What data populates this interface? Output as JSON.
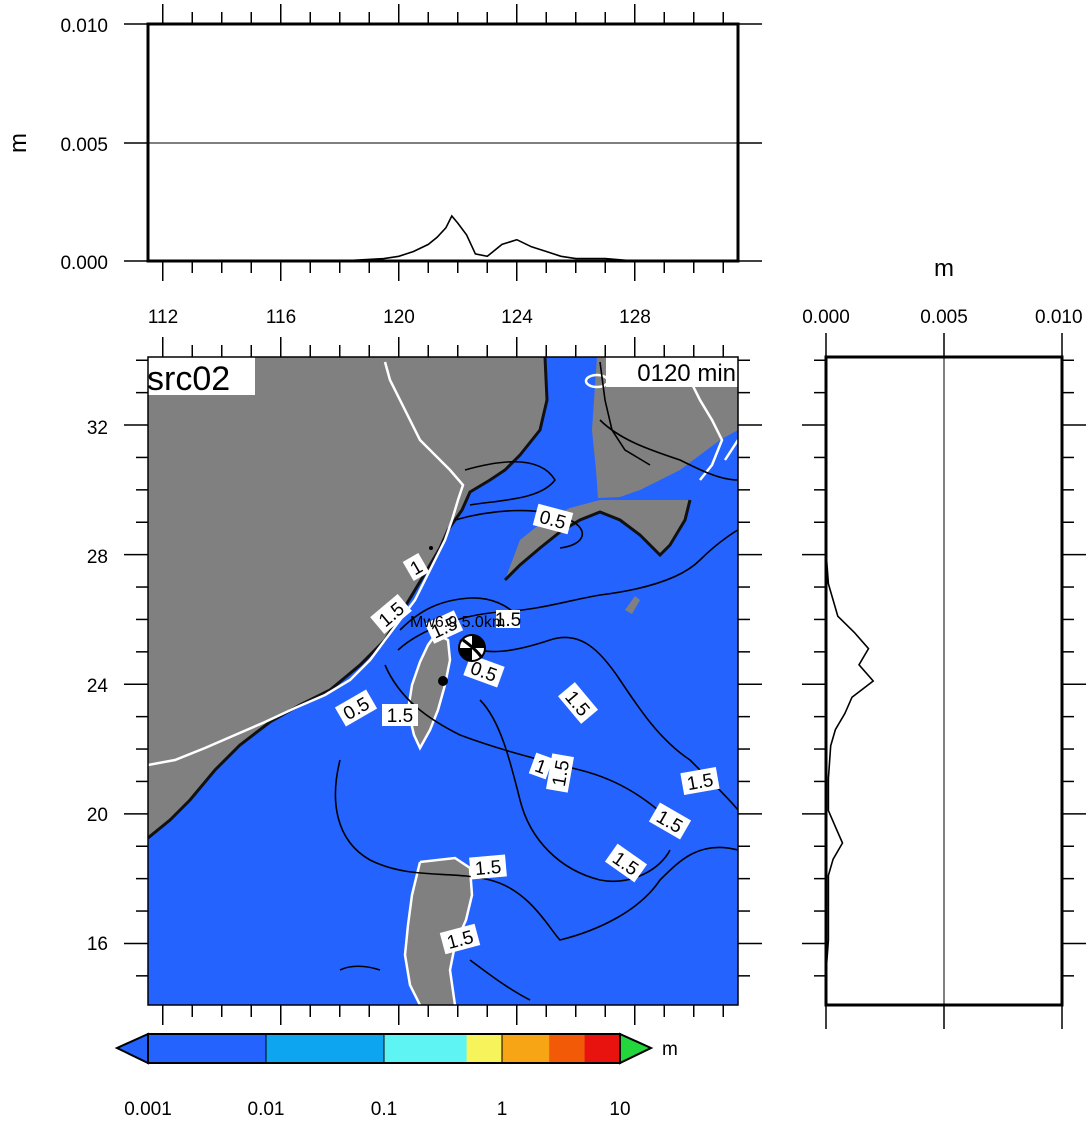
{
  "map": {
    "source_label": "src02",
    "time_label": "0120 min",
    "epicenter_label": "Mw6.9  5.0km",
    "background_color": "#2563ff",
    "land_color": "#808080",
    "x_ticks": [
      "112",
      "116",
      "120",
      "124",
      "128"
    ],
    "y_ticks": [
      "32",
      "28",
      "24",
      "20",
      "16"
    ],
    "contour_labels": [
      "0.5",
      "1",
      "1.5",
      "1.5",
      "0.5",
      "1.5",
      "0.5",
      "1.5",
      "1",
      "1.5",
      "1.5",
      "1.5",
      "1.5",
      "1.5",
      "1.5",
      "1.5"
    ]
  },
  "top_profile": {
    "ylabel": "m",
    "y_ticks": [
      "0.010",
      "0.005",
      "0.000"
    ],
    "x_ticks": [
      "112",
      "116",
      "120",
      "124",
      "128"
    ],
    "chart_data": {
      "type": "line",
      "x": [
        112,
        118,
        119.5,
        120,
        120.5,
        121,
        121.3,
        121.6,
        121.8,
        122,
        122.3,
        122.6,
        123,
        123.5,
        124,
        124.5,
        125,
        125.5,
        126,
        127,
        128,
        131
      ],
      "y": [
        0,
        0,
        0.0001,
        0.0002,
        0.0004,
        0.0007,
        0.001,
        0.0014,
        0.0019,
        0.0016,
        0.0011,
        0.0003,
        0.0002,
        0.0007,
        0.0009,
        0.0006,
        0.0004,
        0.0002,
        0.0001,
        0.0001,
        0,
        0
      ],
      "xlim": [
        111.5,
        131.5
      ],
      "ylim": [
        0,
        0.01
      ]
    }
  },
  "side_profile": {
    "xlabel": "m",
    "x_ticks": [
      "0.000",
      "0.005",
      "0.010"
    ],
    "chart_data": {
      "type": "line",
      "lat": [
        34,
        28,
        27,
        26.5,
        26,
        25.5,
        25,
        24.5,
        24,
        23.5,
        23,
        22.5,
        22,
        21,
        20,
        19.5,
        19,
        18.5,
        18,
        17,
        16,
        15,
        14
      ],
      "value": [
        0,
        0,
        0.0001,
        0.0003,
        0.0005,
        0.0012,
        0.0018,
        0.0014,
        0.002,
        0.0011,
        0.0008,
        0.0004,
        0.0002,
        0.0001,
        0.0001,
        0.0004,
        0.0007,
        0.0003,
        0.0001,
        0.0001,
        0.0001,
        0,
        0
      ],
      "xlim": [
        0,
        0.01
      ],
      "ylim": [
        14,
        34
      ]
    }
  },
  "colorbar": {
    "unit": "m",
    "labels": [
      "0.001",
      "0.01",
      "0.1",
      "1",
      "10"
    ],
    "colors": [
      "#2563ff",
      "#0ea5f0",
      "#5ef4f4",
      "#f6f45a",
      "#f7a415",
      "#f25a08",
      "#e8120e"
    ],
    "under_color": "#2563ff",
    "over_color": "#22d63b"
  }
}
